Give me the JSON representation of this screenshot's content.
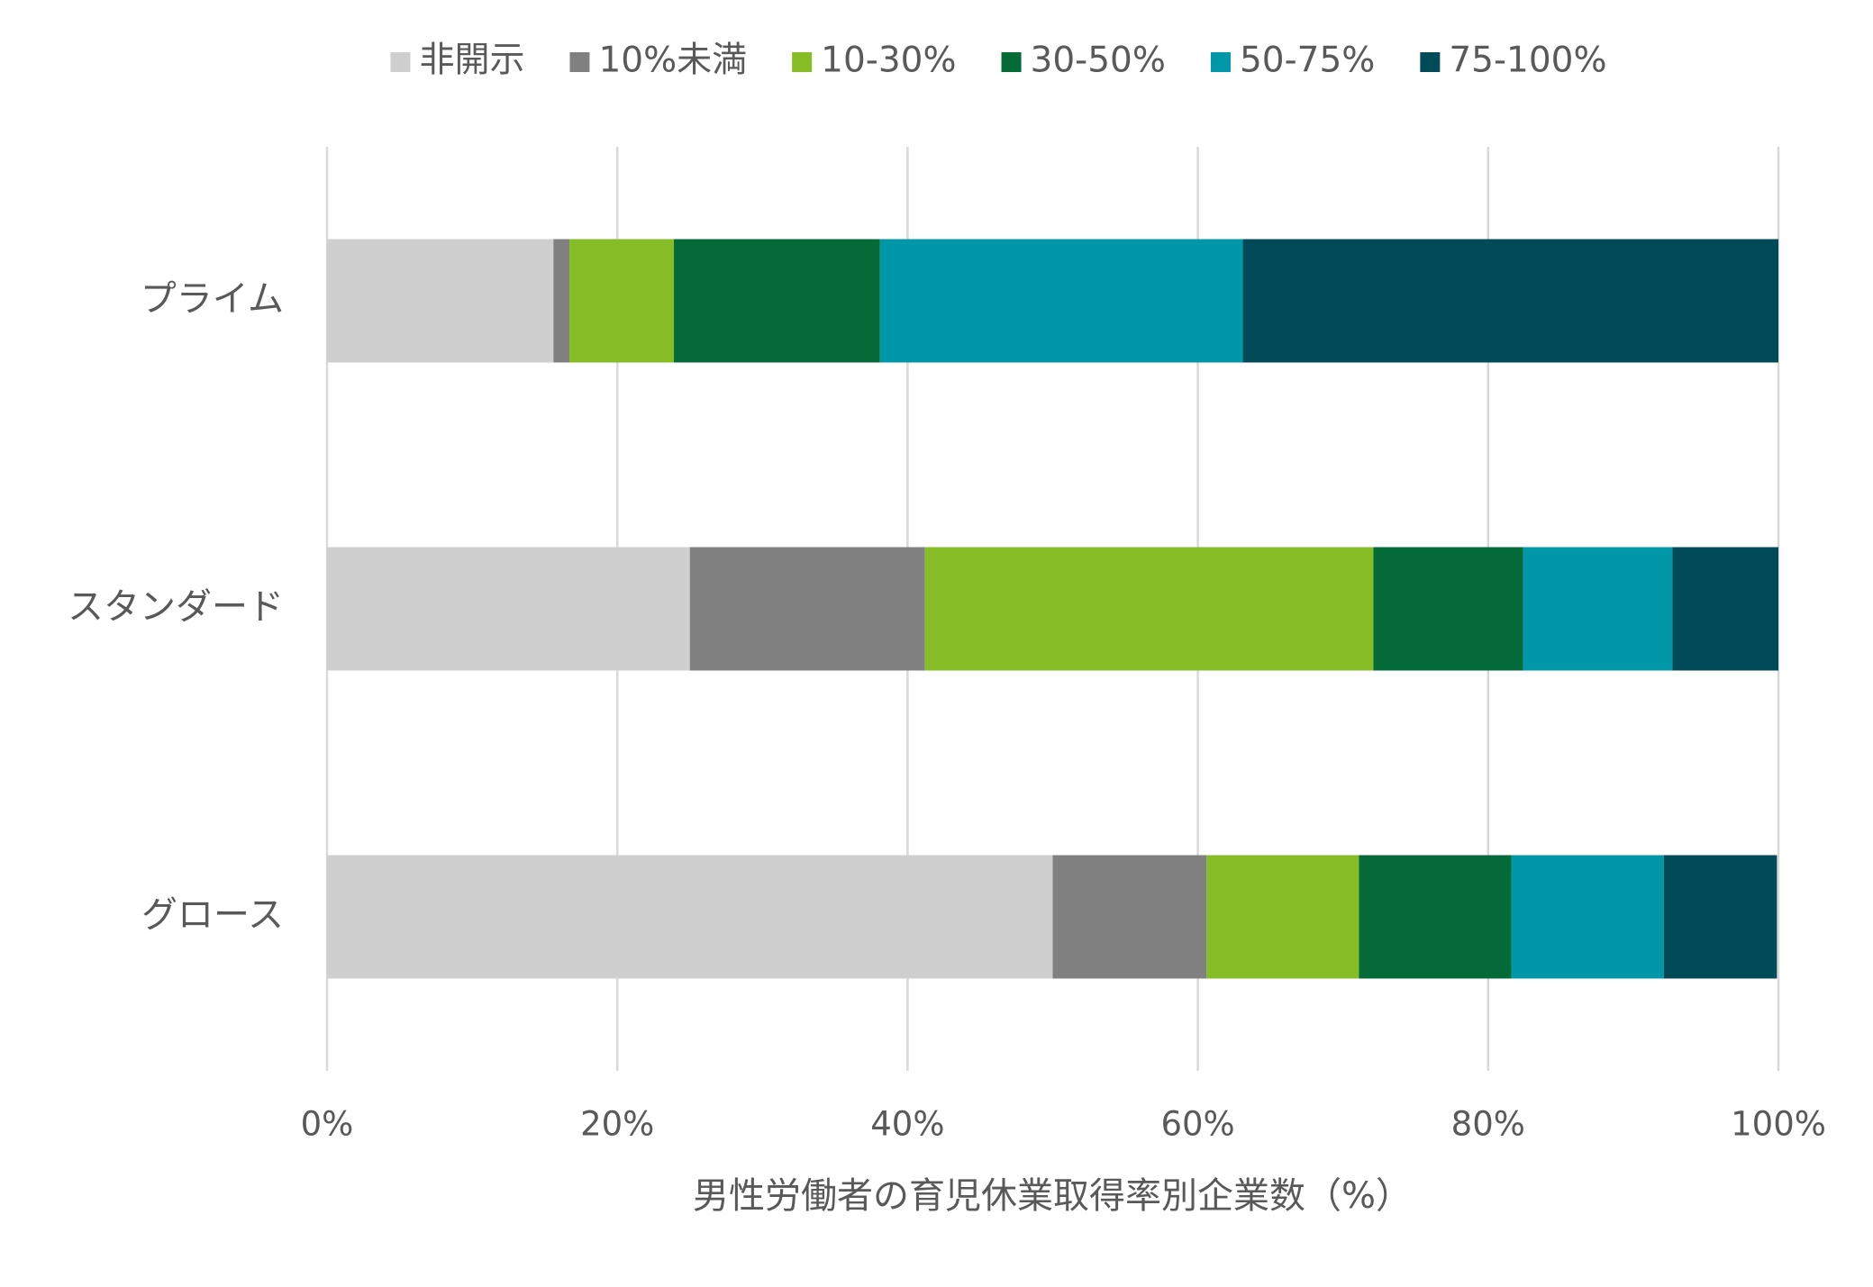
{
  "chart_data": {
    "type": "stacked-bar-horizontal",
    "x_label": "男性労働者の育児休業取得率別企業数（%）",
    "categories": [
      "プライム",
      "スタンダード",
      "グロース"
    ],
    "series": [
      {
        "name": "非開示",
        "color": "#d0cfcf",
        "values": [
          15.6,
          25.0,
          50.0
        ]
      },
      {
        "name": "10%未満",
        "color": "#808080",
        "values": [
          1.1,
          16.2,
          10.6
        ]
      },
      {
        "name": "10-30%",
        "color": "#86bc25",
        "values": [
          7.2,
          30.9,
          10.5
        ]
      },
      {
        "name": "30-50%",
        "color": "#046a38",
        "values": [
          14.2,
          10.3,
          10.5
        ]
      },
      {
        "name": "50-75%",
        "color": "#0097a9",
        "values": [
          25.0,
          10.3,
          10.5
        ]
      },
      {
        "name": "75-100%",
        "color": "#004b57",
        "values": [
          36.9,
          7.3,
          7.8
        ]
      }
    ],
    "xlim": [
      0,
      100
    ],
    "xticks": [
      {
        "value": 0,
        "label": "0%"
      },
      {
        "value": 20,
        "label": "20%"
      },
      {
        "value": 40,
        "label": "40%"
      },
      {
        "value": 60,
        "label": "60%"
      },
      {
        "value": 80,
        "label": "80%"
      },
      {
        "value": 100,
        "label": "100%"
      }
    ],
    "grid": true,
    "legend": "top"
  }
}
